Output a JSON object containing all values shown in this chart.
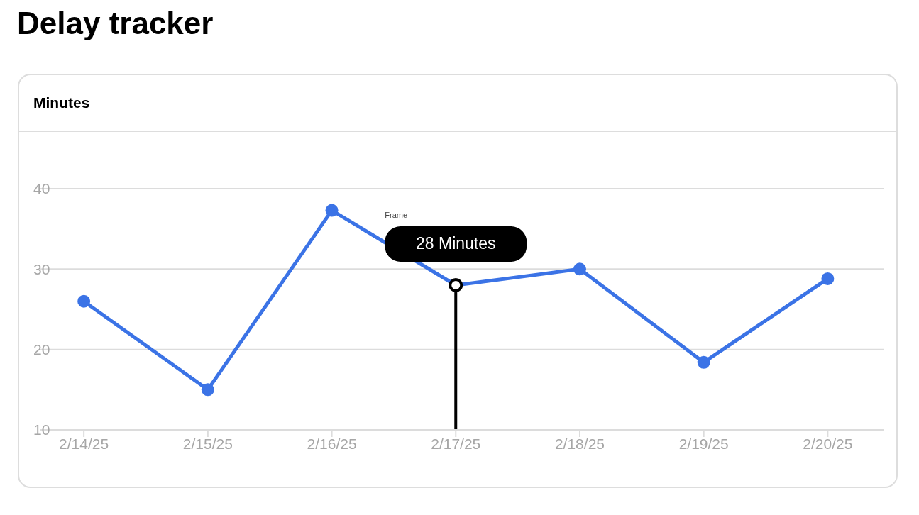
{
  "chart_data": {
    "type": "line",
    "title": "Delay tracker",
    "ylabel": "Minutes",
    "categories": [
      "2/14/25",
      "2/15/25",
      "2/16/25",
      "2/17/25",
      "2/18/25",
      "2/19/25",
      "2/20/25"
    ],
    "series": [
      {
        "color": "#3b73e6",
        "values": [
          26,
          15,
          37.3,
          28,
          30,
          18.4,
          28.8
        ]
      }
    ],
    "ylim": [
      10,
      40
    ],
    "yticks": [
      10,
      20,
      30,
      40
    ],
    "grid": "y",
    "legend": false,
    "marker": "circle",
    "line_style": "solid",
    "ref_lines": [
      {
        "axis": "x",
        "value": "2/17/25",
        "color": "#000000"
      }
    ],
    "annotations": [
      "Frame",
      {
        "text": "28 Minutes",
        "x": "2/17/25",
        "y": 28
      }
    ]
  }
}
